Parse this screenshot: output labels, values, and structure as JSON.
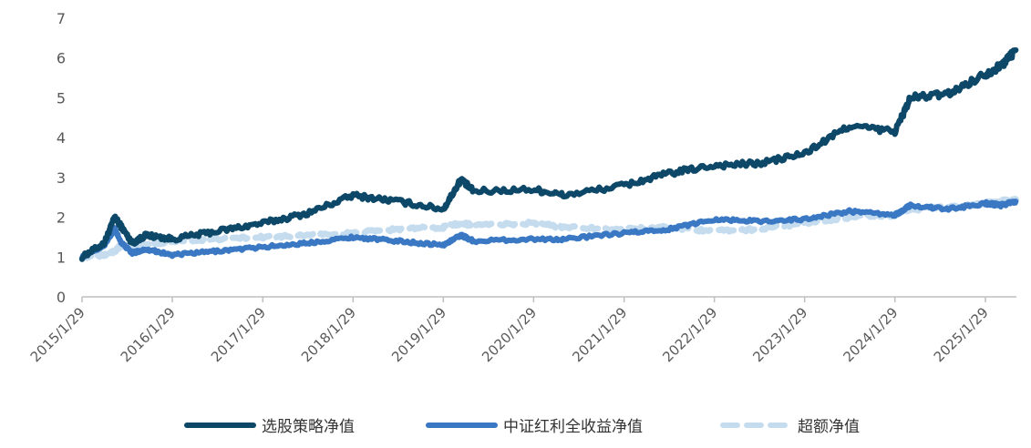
{
  "chart_data": {
    "type": "line",
    "title": "",
    "xlabel": "",
    "ylabel": "",
    "ylim": [
      0,
      7
    ],
    "y_ticks": [
      "0",
      "1",
      "2",
      "3",
      "4",
      "5",
      "6",
      "7"
    ],
    "x_ticks": [
      "2015/1/29",
      "2016/1/29",
      "2017/1/29",
      "2018/1/29",
      "2019/1/29",
      "2020/1/29",
      "2021/1/29",
      "2022/1/29",
      "2023/1/29",
      "2024/1/29",
      "2025/1/29"
    ],
    "grid": false,
    "legend_position": "bottom",
    "series": [
      {
        "name": "选股策略净值",
        "color": "#0e4868",
        "style": "solid",
        "x": [
          "2015/1/29",
          "2015/4/29",
          "2015/6/10",
          "2015/7/8",
          "2015/8/20",
          "2015/10/15",
          "2016/1/29",
          "2016/7/29",
          "2017/1/29",
          "2017/7/29",
          "2018/1/29",
          "2018/7/29",
          "2019/1/29",
          "2019/4/10",
          "2019/6/1",
          "2020/1/29",
          "2020/6/1",
          "2021/1/29",
          "2021/7/29",
          "2022/1/29",
          "2022/7/29",
          "2023/1/29",
          "2023/7/29",
          "2024/1/29",
          "2024/4/1",
          "2024/9/1",
          "2025/1/29",
          "2025/4/1",
          "2025/6/1"
        ],
        "values": [
          1.0,
          1.35,
          2.0,
          1.75,
          1.35,
          1.55,
          1.45,
          1.65,
          1.85,
          2.1,
          2.55,
          2.4,
          2.2,
          2.95,
          2.65,
          2.7,
          2.55,
          2.8,
          3.1,
          3.3,
          3.35,
          3.6,
          4.3,
          4.15,
          5.0,
          5.1,
          5.6,
          5.8,
          6.2
        ]
      },
      {
        "name": "中证红利全收益净值",
        "color": "#3a78c4",
        "style": "solid",
        "x": [
          "2015/1/29",
          "2015/4/29",
          "2015/6/10",
          "2015/7/8",
          "2015/8/20",
          "2015/10/15",
          "2016/1/29",
          "2016/7/29",
          "2017/1/29",
          "2017/7/29",
          "2018/1/29",
          "2018/7/29",
          "2019/1/29",
          "2019/4/10",
          "2019/6/1",
          "2020/1/29",
          "2020/6/1",
          "2021/1/29",
          "2021/7/29",
          "2022/1/29",
          "2022/7/29",
          "2023/1/29",
          "2023/7/29",
          "2024/1/29",
          "2024/4/1",
          "2024/9/1",
          "2025/1/29",
          "2025/4/1",
          "2025/6/1"
        ],
        "values": [
          1.0,
          1.3,
          1.7,
          1.35,
          1.1,
          1.2,
          1.05,
          1.15,
          1.25,
          1.35,
          1.5,
          1.4,
          1.3,
          1.55,
          1.4,
          1.45,
          1.45,
          1.6,
          1.7,
          1.95,
          1.9,
          1.95,
          2.15,
          2.05,
          2.3,
          2.2,
          2.35,
          2.3,
          2.4
        ]
      },
      {
        "name": "超额净值",
        "color": "#c5dcef",
        "style": "dashed",
        "x": [
          "2015/1/29",
          "2015/4/29",
          "2015/6/10",
          "2015/7/8",
          "2015/8/20",
          "2015/10/15",
          "2016/1/29",
          "2016/7/29",
          "2017/1/29",
          "2017/7/29",
          "2018/1/29",
          "2018/7/29",
          "2019/1/29",
          "2019/4/10",
          "2019/6/1",
          "2020/1/29",
          "2020/6/1",
          "2021/1/29",
          "2021/7/29",
          "2022/1/29",
          "2022/7/29",
          "2023/1/29",
          "2023/7/29",
          "2024/1/29",
          "2024/4/1",
          "2024/9/1",
          "2025/1/29",
          "2025/4/1",
          "2025/6/1"
        ],
        "values": [
          1.0,
          1.05,
          1.15,
          1.3,
          1.25,
          1.3,
          1.4,
          1.45,
          1.5,
          1.55,
          1.6,
          1.7,
          1.75,
          1.85,
          1.8,
          1.85,
          1.75,
          1.7,
          1.75,
          1.65,
          1.7,
          1.85,
          2.0,
          2.05,
          2.2,
          2.25,
          2.35,
          2.4,
          2.45
        ]
      }
    ]
  }
}
